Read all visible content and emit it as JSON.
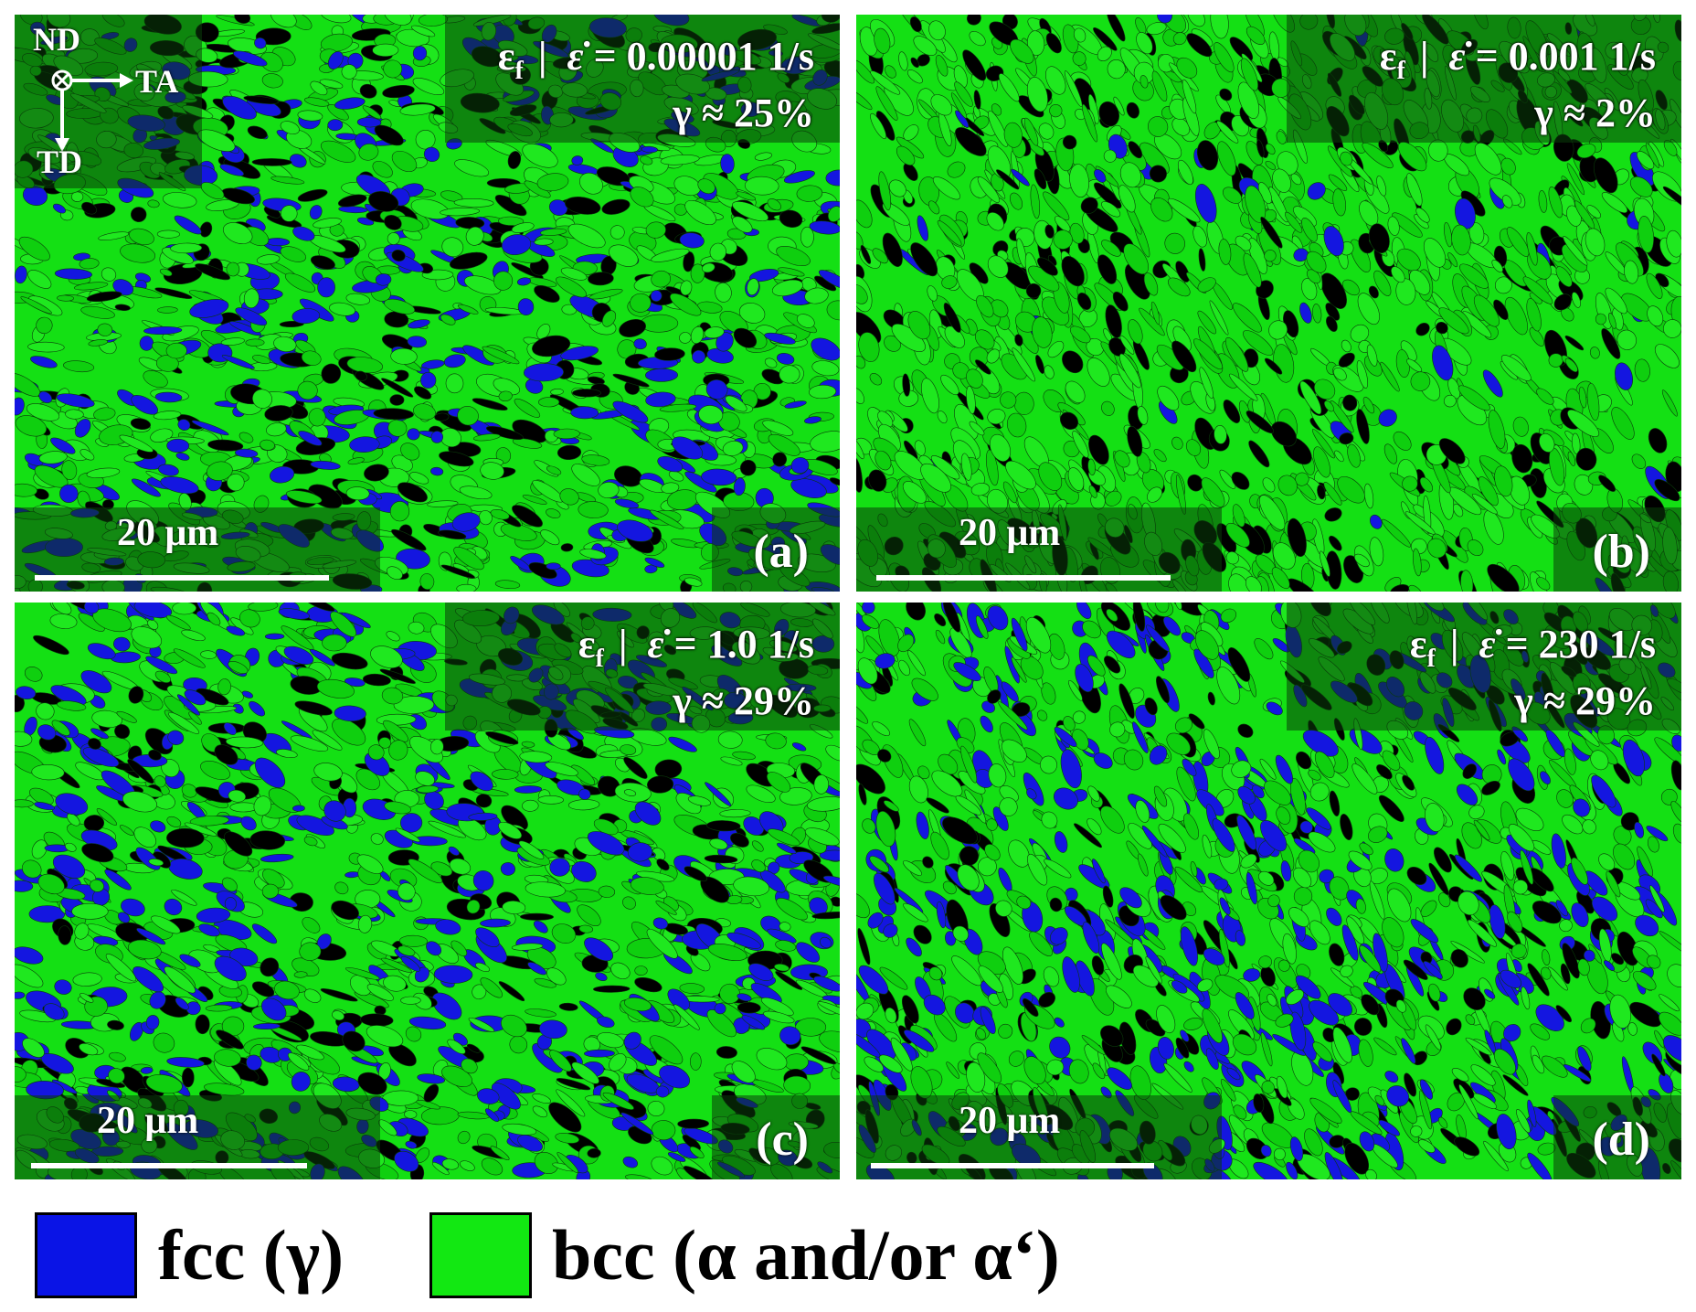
{
  "panels": [
    {
      "id": "a",
      "strain_prefix": "ε",
      "strain_sub": "f",
      "rate_symbol": "ε̇",
      "rate_text": " = 0.00001 1/s",
      "gamma": "γ ≈ 25%",
      "scale": "20 μm",
      "label": "(a)",
      "fcc_fraction": 0.25
    },
    {
      "id": "b",
      "strain_prefix": "ε",
      "strain_sub": "f",
      "rate_symbol": "ε̇",
      "rate_text": " = 0.001 1/s",
      "gamma": "γ ≈ 2%",
      "scale": "20 μm",
      "label": "(b)",
      "fcc_fraction": 0.02
    },
    {
      "id": "c",
      "strain_prefix": "ε",
      "strain_sub": "f",
      "rate_symbol": "ε̇",
      "rate_text": " = 1.0 1/s",
      "gamma": "γ ≈ 29%",
      "scale": "20 μm",
      "label": "(c)",
      "fcc_fraction": 0.29
    },
    {
      "id": "d",
      "strain_prefix": "ε",
      "strain_sub": "f",
      "rate_symbol": "ε̇",
      "rate_text": " = 230 1/s",
      "gamma": "γ ≈ 29%",
      "scale": "20 μm",
      "label": "(d)",
      "fcc_fraction": 0.29
    }
  ],
  "axes": {
    "nd": "ND",
    "ta": "TA",
    "td": "TD"
  },
  "legend": {
    "fcc": {
      "label": "fcc (γ)",
      "color": "#0a14e6"
    },
    "bcc": {
      "label": "bcc (α and/or α‘)",
      "color": "#12e812"
    }
  },
  "colors": {
    "bcc": "#14e014",
    "fcc": "#1416e0",
    "boundary": "#000000"
  }
}
